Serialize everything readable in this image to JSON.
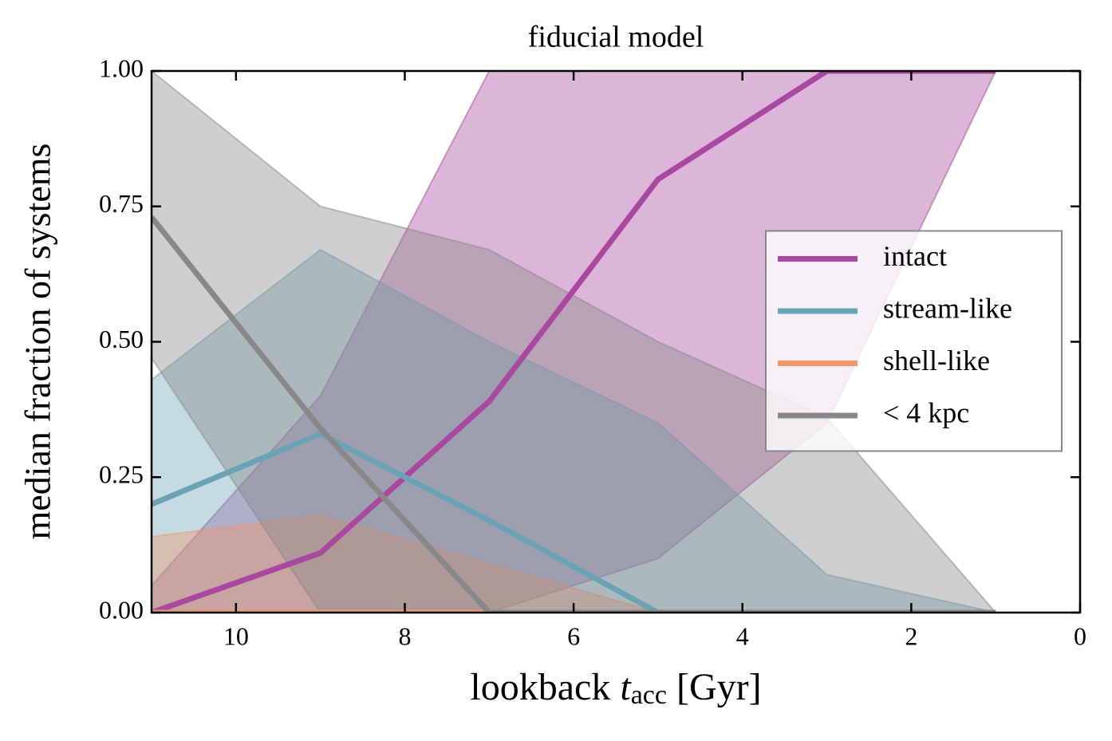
{
  "chart_data": {
    "type": "line",
    "title": "fiducial model",
    "xlabel": [
      "lookback",
      "t",
      "acc",
      "[Gyr]"
    ],
    "ylabel": "median fraction of systems",
    "x": [
      11,
      9,
      7,
      5,
      3,
      1
    ],
    "xlim": [
      11,
      0
    ],
    "xticks": [
      10,
      8,
      6,
      4,
      2,
      0
    ],
    "ylim": [
      0,
      1
    ],
    "yticks": [
      {
        "value": 0,
        "label": "0.00"
      },
      {
        "value": 0.25,
        "label": "0.25"
      },
      {
        "value": 0.5,
        "label": "0.50"
      },
      {
        "value": 0.75,
        "label": "0.75"
      },
      {
        "value": 1,
        "label": "1.00"
      }
    ],
    "legend": "right",
    "series": [
      {
        "name": "intact",
        "color": "#a8489e",
        "values": [
          0,
          0.11,
          0.39,
          0.8,
          1,
          1
        ],
        "lower": [
          0,
          0,
          0,
          0.1,
          0.35,
          1
        ],
        "upper": [
          0.05,
          0.4,
          1,
          1,
          1,
          1
        ]
      },
      {
        "name": "stream-like",
        "color": "#6aa4b4",
        "values": [
          0.2,
          0.33,
          0.17,
          0,
          0,
          0
        ],
        "lower": [
          0,
          0,
          0,
          0,
          0,
          0
        ],
        "upper": [
          0.43,
          0.67,
          0.5,
          0.35,
          0.07,
          0
        ]
      },
      {
        "name": "shell-like",
        "color": "#f0966a",
        "values": [
          0,
          0,
          0,
          0,
          0,
          0
        ],
        "lower": [
          0,
          0,
          0,
          0,
          0,
          0
        ],
        "upper": [
          0.14,
          0.18,
          0.09,
          0,
          0,
          0
        ]
      },
      {
        "name": "< 4 kpc",
        "color": "#888888",
        "values": [
          0.73,
          0.34,
          0,
          0,
          0,
          0
        ],
        "lower": [
          0.47,
          0,
          0,
          0,
          0,
          0
        ],
        "upper": [
          1,
          0.75,
          0.67,
          0.5,
          0.36,
          0
        ]
      }
    ]
  }
}
